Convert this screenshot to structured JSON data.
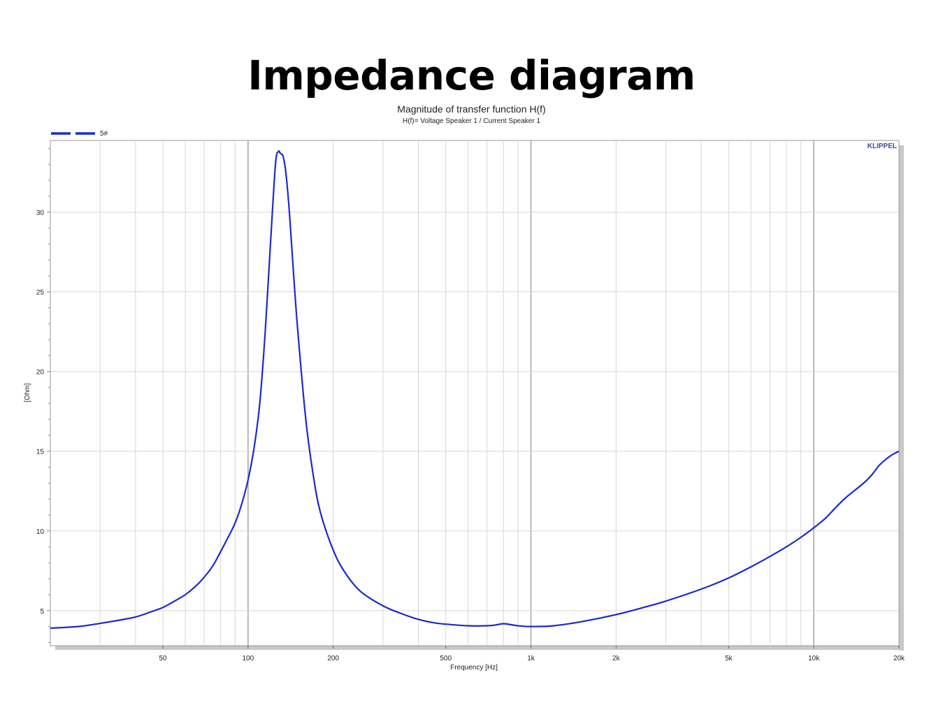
{
  "page": {
    "title": "Impedance diagram"
  },
  "chart_data": {
    "type": "line",
    "title": "Magnitude of transfer function H(f)",
    "subtitle": "H(f)= Voltage Speaker 1 / Current Speaker 1",
    "xlabel": "Frequency [Hz]",
    "ylabel": "[Ohm]",
    "xscale": "log",
    "xlim": [
      20,
      20000
    ],
    "ylim": [
      2.8,
      34.5
    ],
    "x_ticks": [
      {
        "value": 50,
        "label": "50"
      },
      {
        "value": 100,
        "label": "100"
      },
      {
        "value": 200,
        "label": "200"
      },
      {
        "value": 500,
        "label": "500"
      },
      {
        "value": 1000,
        "label": "1k"
      },
      {
        "value": 2000,
        "label": "2k"
      },
      {
        "value": 5000,
        "label": "5k"
      },
      {
        "value": 10000,
        "label": "10k"
      },
      {
        "value": 20000,
        "label": "20k"
      }
    ],
    "y_ticks": [
      {
        "value": 5,
        "label": "5"
      },
      {
        "value": 10,
        "label": "10"
      },
      {
        "value": 15,
        "label": "15"
      },
      {
        "value": 20,
        "label": "20"
      },
      {
        "value": 25,
        "label": "25"
      },
      {
        "value": 30,
        "label": "30"
      }
    ],
    "grid": true,
    "legend_position": "top-left",
    "brand_label": "KLIPPEL",
    "series": [
      {
        "name": "5#",
        "color": "#1a2bcc",
        "points": [
          [
            20,
            3.9
          ],
          [
            25,
            4.0
          ],
          [
            30,
            4.2
          ],
          [
            35,
            4.4
          ],
          [
            40,
            4.6
          ],
          [
            45,
            4.9
          ],
          [
            50,
            5.2
          ],
          [
            55,
            5.6
          ],
          [
            60,
            6.0
          ],
          [
            65,
            6.5
          ],
          [
            70,
            7.1
          ],
          [
            75,
            7.8
          ],
          [
            80,
            8.7
          ],
          [
            85,
            9.6
          ],
          [
            90,
            10.5
          ],
          [
            95,
            11.7
          ],
          [
            100,
            13.2
          ],
          [
            105,
            15.2
          ],
          [
            110,
            18.0
          ],
          [
            115,
            22.5
          ],
          [
            120,
            28.0
          ],
          [
            125,
            33.0
          ],
          [
            128,
            33.8
          ],
          [
            130,
            33.7
          ],
          [
            133,
            33.5
          ],
          [
            136,
            32.5
          ],
          [
            140,
            30.0
          ],
          [
            145,
            26.0
          ],
          [
            150,
            22.5
          ],
          [
            160,
            17.0
          ],
          [
            170,
            13.5
          ],
          [
            180,
            11.2
          ],
          [
            200,
            8.8
          ],
          [
            220,
            7.4
          ],
          [
            250,
            6.2
          ],
          [
            300,
            5.3
          ],
          [
            350,
            4.8
          ],
          [
            400,
            4.45
          ],
          [
            450,
            4.25
          ],
          [
            500,
            4.15
          ],
          [
            600,
            4.05
          ],
          [
            700,
            4.05
          ],
          [
            750,
            4.1
          ],
          [
            800,
            4.18
          ],
          [
            850,
            4.12
          ],
          [
            900,
            4.05
          ],
          [
            1000,
            4.0
          ],
          [
            1200,
            4.05
          ],
          [
            1500,
            4.3
          ],
          [
            2000,
            4.75
          ],
          [
            2500,
            5.2
          ],
          [
            3000,
            5.6
          ],
          [
            4000,
            6.35
          ],
          [
            5000,
            7.05
          ],
          [
            6000,
            7.75
          ],
          [
            7000,
            8.4
          ],
          [
            8000,
            9.0
          ],
          [
            9000,
            9.6
          ],
          [
            10000,
            10.2
          ],
          [
            11000,
            10.8
          ],
          [
            12000,
            11.5
          ],
          [
            13000,
            12.1
          ],
          [
            15000,
            13.0
          ],
          [
            16000,
            13.5
          ],
          [
            17000,
            14.1
          ],
          [
            18000,
            14.5
          ],
          [
            19000,
            14.8
          ],
          [
            20000,
            15.0
          ]
        ]
      }
    ]
  }
}
